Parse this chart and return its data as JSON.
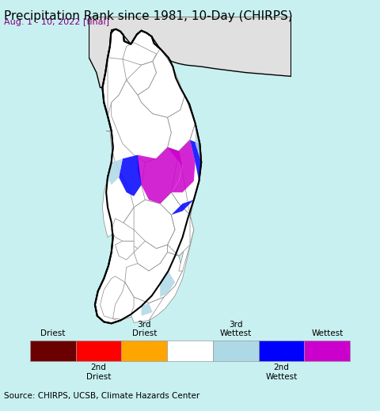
{
  "title": "Precipitation Rank since 1981, 10-Day (CHIRPS)",
  "subtitle": "Aug. 1 - 10, 2022 [final]",
  "source_text": "Source: CHIRPS, UCSB, Climate Hazards Center",
  "background_color": "#c8f0f0",
  "map_white": "#ffffff",
  "ocean_color": "#aae8e8",
  "title_fontsize": 11,
  "subtitle_fontsize": 8,
  "source_fontsize": 7.5,
  "legend_colors": [
    "#6b0000",
    "#ff0000",
    "#ffa500",
    "#ffffff",
    "#add8e6",
    "#0000ff",
    "#cc00cc"
  ],
  "xlim": [
    79.4,
    82.1
  ],
  "ylim": [
    5.85,
    10.05
  ]
}
